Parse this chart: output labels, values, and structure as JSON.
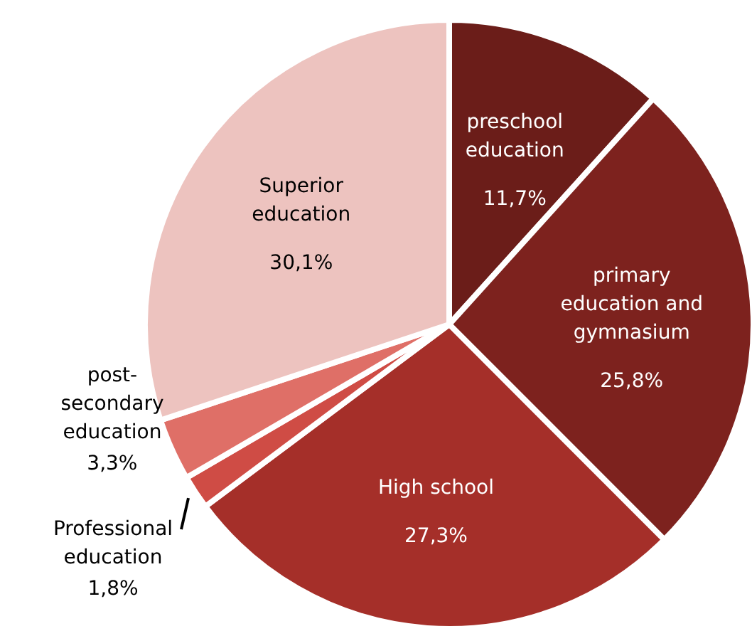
{
  "chart_data": {
    "type": "pie",
    "categories": [
      "preschool education",
      "primary education and gymnasium",
      "High school",
      "Professional education",
      "post-secondary education",
      "Superior education"
    ],
    "values": [
      11.7,
      25.8,
      27.3,
      1.8,
      3.3,
      30.1
    ],
    "value_labels": [
      "11,7%",
      "25,8%",
      "27,3%",
      "1,8%",
      "3,3%",
      "30,1%"
    ],
    "colors": [
      "#6b1d19",
      "#7d221e",
      "#a52f29",
      "#cf4c45",
      "#df6f67",
      "#edc3bf"
    ]
  }
}
